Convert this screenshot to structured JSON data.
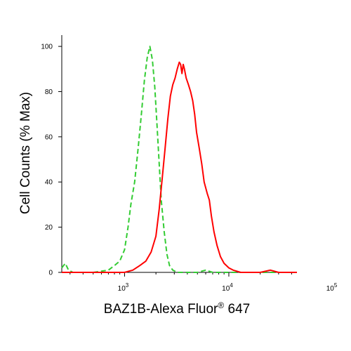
{
  "chart_data": {
    "type": "line",
    "xlabel": "BAZ1B-Alexa Fluor",
    "xlabel_superscript": "®",
    "xlabel_suffix": " 647",
    "ylabel": "Cell Counts (% Max)",
    "x_scale": "log",
    "xlim": [
      250,
      45000
    ],
    "ylim": [
      0,
      105
    ],
    "y_ticks": [
      {
        "value": 0,
        "label": "0"
      },
      {
        "value": 20,
        "label": "20"
      },
      {
        "value": 40,
        "label": "40"
      },
      {
        "value": 60,
        "label": "60"
      },
      {
        "value": 80,
        "label": "80"
      },
      {
        "value": 100,
        "label": "100"
      }
    ],
    "x_ticks": [
      {
        "value": 1000,
        "base": "10",
        "exp": "3"
      },
      {
        "value": 10000,
        "base": "10",
        "exp": "4"
      },
      {
        "value": 100000,
        "base": "10",
        "exp": "5"
      }
    ],
    "grid": false,
    "series": [
      {
        "color": "#33cc33",
        "style": "dashed",
        "points": [
          [
            250,
            2
          ],
          [
            270,
            4
          ],
          [
            290,
            1
          ],
          [
            320,
            0
          ],
          [
            500,
            0
          ],
          [
            700,
            1
          ],
          [
            800,
            3
          ],
          [
            900,
            5
          ],
          [
            1000,
            10
          ],
          [
            1080,
            20
          ],
          [
            1150,
            30
          ],
          [
            1250,
            40
          ],
          [
            1350,
            55
          ],
          [
            1450,
            70
          ],
          [
            1550,
            85
          ],
          [
            1650,
            95
          ],
          [
            1750,
            100
          ],
          [
            1850,
            94
          ],
          [
            1950,
            82
          ],
          [
            2050,
            65
          ],
          [
            2150,
            48
          ],
          [
            2250,
            32
          ],
          [
            2400,
            18
          ],
          [
            2550,
            8
          ],
          [
            2700,
            3
          ],
          [
            2900,
            1
          ],
          [
            3200,
            0
          ],
          [
            5000,
            0
          ],
          [
            6000,
            1
          ],
          [
            7000,
            0
          ],
          [
            45000,
            0
          ]
        ]
      },
      {
        "color": "#ff0000",
        "style": "solid",
        "points": [
          [
            250,
            0
          ],
          [
            1000,
            0
          ],
          [
            1200,
            1
          ],
          [
            1400,
            3
          ],
          [
            1600,
            5
          ],
          [
            1800,
            9
          ],
          [
            2000,
            16
          ],
          [
            2150,
            28
          ],
          [
            2300,
            42
          ],
          [
            2450,
            55
          ],
          [
            2600,
            68
          ],
          [
            2750,
            78
          ],
          [
            2900,
            83
          ],
          [
            3050,
            86
          ],
          [
            3200,
            90
          ],
          [
            3350,
            93
          ],
          [
            3450,
            92
          ],
          [
            3550,
            88
          ],
          [
            3650,
            92
          ],
          [
            3750,
            90
          ],
          [
            3900,
            86
          ],
          [
            4100,
            83
          ],
          [
            4300,
            80
          ],
          [
            4500,
            76
          ],
          [
            4700,
            70
          ],
          [
            4900,
            62
          ],
          [
            5200,
            55
          ],
          [
            5500,
            48
          ],
          [
            5800,
            40
          ],
          [
            6200,
            35
          ],
          [
            6500,
            32
          ],
          [
            6800,
            25
          ],
          [
            7200,
            18
          ],
          [
            7700,
            12
          ],
          [
            8300,
            7
          ],
          [
            9000,
            4
          ],
          [
            10000,
            2
          ],
          [
            11000,
            1
          ],
          [
            13000,
            0
          ],
          [
            20000,
            0
          ],
          [
            25000,
            1
          ],
          [
            30000,
            0
          ],
          [
            45000,
            0
          ]
        ]
      }
    ]
  }
}
